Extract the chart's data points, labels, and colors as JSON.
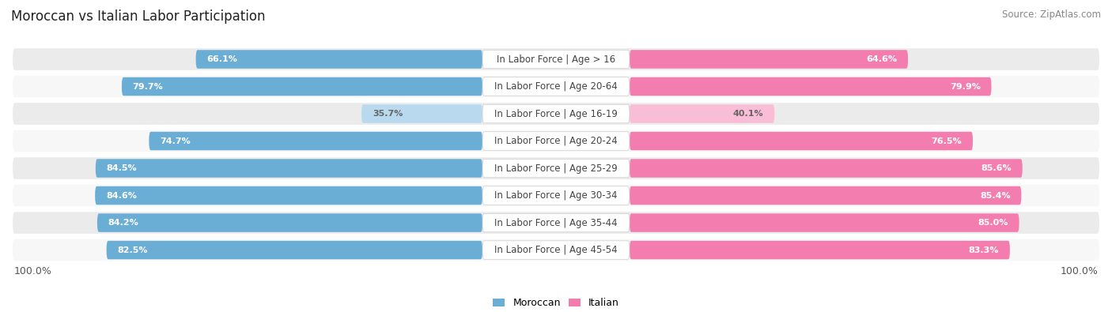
{
  "title": "Moroccan vs Italian Labor Participation",
  "source": "Source: ZipAtlas.com",
  "categories": [
    "In Labor Force | Age > 16",
    "In Labor Force | Age 20-64",
    "In Labor Force | Age 16-19",
    "In Labor Force | Age 20-24",
    "In Labor Force | Age 25-29",
    "In Labor Force | Age 30-34",
    "In Labor Force | Age 35-44",
    "In Labor Force | Age 45-54"
  ],
  "moroccan_values": [
    66.1,
    79.7,
    35.7,
    74.7,
    84.5,
    84.6,
    84.2,
    82.5
  ],
  "italian_values": [
    64.6,
    79.9,
    40.1,
    76.5,
    85.6,
    85.4,
    85.0,
    83.3
  ],
  "moroccan_color": "#6aaed6",
  "moroccan_light_color": "#b8d9ee",
  "italian_color": "#f47db0",
  "italian_light_color": "#f9bdd6",
  "row_bg_even": "#ebebeb",
  "row_bg_odd": "#f7f7f7",
  "max_value": 100.0,
  "legend_moroccan": "Moroccan",
  "legend_italian": "Italian",
  "label_fontsize": 8.5,
  "value_fontsize": 8.0,
  "title_fontsize": 12,
  "source_fontsize": 8.5
}
